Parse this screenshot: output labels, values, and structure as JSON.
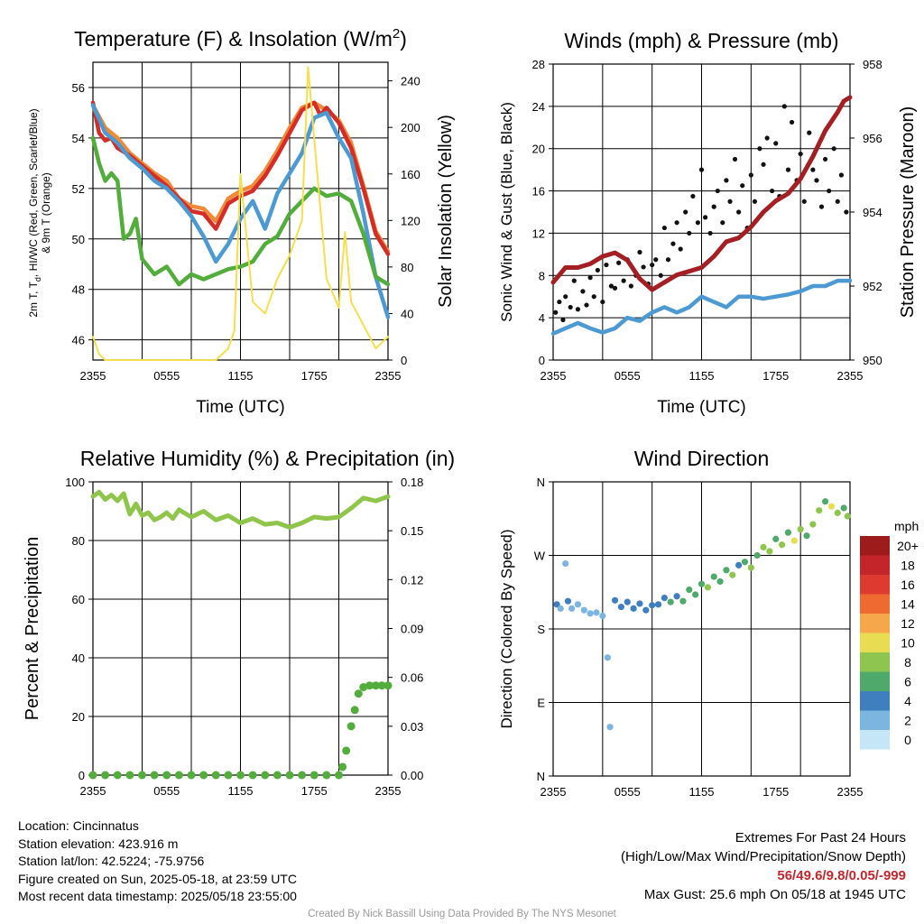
{
  "x_ticks": [
    "2355",
    "0555",
    "1155",
    "1755",
    "2355"
  ],
  "charts": [
    {
      "id": "temp",
      "type": "line",
      "title": "Temperature (F) & Insolation (W/m²)",
      "xlabel": "Time (UTC)",
      "ylabel_lines": [
        "2m T, T",
        "d",
        ", HI/WC (Red, Green, Scarlet/Blue)",
        "& 9m T (Orange)"
      ],
      "y2label": "Solar Insolation (Yellow)",
      "ylim": [
        45.2,
        57.0
      ],
      "y_ticks": [
        46,
        48,
        50,
        52,
        54,
        56
      ],
      "y2lim": [
        0,
        256
      ],
      "y2_ticks": [
        0,
        40,
        80,
        120,
        160,
        200,
        240
      ],
      "series": [
        {
          "color": "#f08a38",
          "axis": "y",
          "x": [
            0,
            1,
            2,
            3,
            4,
            5,
            6,
            7,
            8,
            9,
            10,
            11,
            12,
            13,
            14,
            15,
            16,
            17,
            18,
            19,
            20,
            21,
            22,
            23,
            24
          ],
          "y": [
            55.3,
            54.4,
            54.0,
            53.4,
            53.0,
            52.6,
            52.3,
            51.6,
            51.3,
            51.2,
            50.7,
            51.6,
            51.9,
            52.1,
            52.7,
            53.5,
            54.4,
            55.2,
            55.4,
            55.1,
            54.7,
            53.8,
            52.1,
            50.3,
            49.5
          ]
        },
        {
          "color": "#d42d27",
          "axis": "y",
          "x": [
            0,
            0.5,
            1,
            1.5,
            2,
            3,
            4,
            5,
            6,
            7,
            8,
            9,
            10,
            11,
            12,
            13,
            14,
            15,
            16,
            17,
            18,
            18.5,
            19,
            20,
            21,
            22,
            23,
            24
          ],
          "y": [
            55.4,
            54.2,
            53.9,
            54.0,
            53.6,
            53.3,
            52.9,
            52.5,
            52.1,
            51.6,
            51.1,
            51.0,
            50.4,
            51.4,
            51.7,
            51.9,
            52.5,
            53.3,
            54.2,
            55.1,
            55.4,
            54.9,
            55.2,
            54.6,
            53.6,
            52.0,
            50.2,
            49.4
          ]
        },
        {
          "color": "#4d9ad2",
          "axis": "y",
          "x": [
            0,
            1,
            2,
            3,
            4,
            5,
            6,
            7,
            8,
            9,
            10,
            11,
            12,
            13,
            14,
            15,
            16,
            17,
            18,
            19,
            20,
            21,
            22,
            23,
            24
          ],
          "y": [
            55.3,
            54.2,
            53.8,
            53.2,
            52.8,
            52.3,
            52.0,
            51.5,
            50.9,
            50.1,
            49.1,
            49.8,
            50.8,
            51.5,
            50.4,
            51.8,
            52.6,
            53.4,
            54.8,
            55.0,
            54.0,
            53.2,
            51.0,
            48.5,
            46.9
          ]
        },
        {
          "color": "#52ad3c",
          "axis": "y",
          "x": [
            0,
            0.5,
            1,
            1.5,
            2,
            2.5,
            3,
            3.5,
            4,
            5,
            6,
            7,
            8,
            9,
            10,
            11,
            12,
            13,
            14,
            15,
            16,
            17,
            18,
            19,
            20,
            21,
            22,
            23,
            24
          ],
          "y": [
            54.0,
            53.0,
            52.3,
            52.6,
            52.3,
            50.0,
            50.2,
            50.8,
            49.2,
            48.6,
            48.9,
            48.2,
            48.6,
            48.4,
            48.6,
            48.8,
            48.9,
            49.1,
            49.8,
            50.1,
            51.0,
            51.5,
            52.0,
            51.7,
            51.8,
            51.5,
            50.2,
            48.5,
            48.2
          ]
        },
        {
          "color": "#f5df4f",
          "axis": "y2",
          "x": [
            0,
            0.5,
            1,
            2,
            3,
            4,
            5,
            6,
            7,
            8,
            9,
            10,
            11,
            11.5,
            12,
            13,
            14,
            15,
            16,
            17,
            17.5,
            18,
            19,
            20,
            20.5,
            21,
            22,
            23,
            24
          ],
          "y": [
            20,
            5,
            0,
            0,
            0,
            0,
            0,
            0,
            0,
            0,
            0,
            0,
            10,
            25,
            160,
            50,
            40,
            70,
            90,
            120,
            252,
            190,
            70,
            45,
            110,
            50,
            30,
            10,
            20
          ]
        }
      ]
    },
    {
      "id": "wind",
      "type": "scatter",
      "title": "Winds (mph) & Pressure (mb)",
      "xlabel": "Time (UTC)",
      "ylabel": "Sonic Wind & Gust (Blue, Black)",
      "y2label": "Station Pressure (Maroon)",
      "ylim": [
        0,
        28
      ],
      "y_ticks": [
        0,
        4,
        8,
        12,
        16,
        20,
        24,
        28
      ],
      "y2lim": [
        950,
        958
      ],
      "y2_ticks": [
        950,
        952,
        954,
        956,
        958
      ],
      "series": [
        {
          "color": "#4d9ad2",
          "axis": "y",
          "x": [
            0,
            1,
            2,
            3,
            4,
            5,
            6,
            7,
            8,
            9,
            10,
            11,
            12,
            13,
            14,
            15,
            16,
            17,
            18,
            19,
            20,
            21,
            22,
            23,
            24
          ],
          "y": [
            2.5,
            3.0,
            3.5,
            3.0,
            2.6,
            3.0,
            4.0,
            3.7,
            4.5,
            5.0,
            4.5,
            5.0,
            6.0,
            5.5,
            5.0,
            6.0,
            6.0,
            5.8,
            6.0,
            6.2,
            6.5,
            7.0,
            7.0,
            7.5,
            7.5
          ]
        },
        {
          "color": "#111111",
          "axis": "y",
          "marker": "dot",
          "x": [
            0.2,
            0.5,
            0.8,
            1.0,
            1.4,
            1.7,
            2.0,
            2.4,
            2.7,
            3.0,
            3.3,
            3.6,
            4.0,
            4.3,
            4.7,
            5.0,
            5.3,
            5.7,
            6.0,
            6.3,
            6.7,
            7.0,
            7.3,
            7.7,
            8.0,
            8.3,
            8.7,
            9.0,
            9.3,
            9.7,
            10.0,
            10.3,
            10.7,
            11.0,
            11.3,
            11.7,
            12.0,
            12.3,
            12.7,
            13.0,
            13.3,
            13.7,
            14.0,
            14.3,
            14.7,
            15.0,
            15.3,
            15.7,
            16.0,
            16.3,
            16.7,
            17.0,
            17.3,
            17.7,
            18.0,
            18.3,
            18.7,
            19.0,
            19.3,
            19.7,
            20.0,
            20.3,
            20.7,
            21.0,
            21.3,
            21.7,
            22.0,
            22.3,
            22.7,
            23.0,
            23.3,
            23.7
          ],
          "y": [
            4.5,
            5.5,
            3.8,
            6.0,
            5.0,
            7.5,
            4.8,
            6.5,
            5.2,
            7.8,
            6.0,
            8.5,
            5.5,
            9.0,
            7.0,
            6.8,
            9.2,
            7.5,
            9.5,
            7.0,
            8.0,
            10.2,
            8.8,
            7.2,
            9.0,
            9.5,
            8.0,
            12.5,
            9.5,
            11.0,
            13.0,
            10.5,
            14.0,
            12.0,
            15.5,
            13.0,
            18.0,
            13.5,
            12.0,
            14.5,
            16.0,
            13.0,
            17.0,
            15.0,
            19.0,
            14.0,
            16.5,
            12.5,
            17.5,
            15.0,
            20.0,
            18.5,
            21.0,
            16.0,
            20.5,
            15.5,
            24.0,
            18.0,
            22.5,
            17.0,
            19.5,
            15.0,
            21.5,
            18.0,
            17.0,
            14.5,
            19.0,
            16.0,
            20.0,
            15.0,
            17.5,
            14.0
          ]
        },
        {
          "color": "#a31f24",
          "axis": "y2",
          "x": [
            0,
            0.5,
            1,
            2,
            3,
            4,
            5,
            6,
            7,
            8,
            9,
            10,
            11,
            12,
            13,
            14,
            15,
            16,
            17,
            18,
            19,
            20,
            21,
            22,
            23,
            23.5,
            24
          ],
          "y": [
            952.1,
            952.3,
            952.5,
            952.5,
            952.6,
            952.8,
            952.9,
            952.7,
            952.2,
            951.9,
            952.1,
            952.3,
            952.4,
            952.5,
            952.8,
            953.2,
            953.3,
            953.6,
            954.0,
            954.3,
            954.5,
            954.9,
            955.5,
            956.2,
            956.7,
            957.0,
            957.1
          ]
        }
      ]
    },
    {
      "id": "rh",
      "type": "line",
      "title": "Relative Humidity (%) & Precipitation (in)",
      "xlabel": "",
      "ylabel": "Percent & Precipitation",
      "ylim": [
        0,
        100
      ],
      "y_ticks": [
        0,
        20,
        40,
        60,
        80,
        100
      ],
      "y2lim": [
        0,
        0.18
      ],
      "y2_ticks": [
        "0.00",
        "0.03",
        "0.06",
        "0.09",
        "0.12",
        "0.15",
        "0.18"
      ],
      "series": [
        {
          "name": "RH",
          "color": "#8fc54b",
          "axis": "y",
          "x": [
            0,
            0.5,
            1,
            1.5,
            2,
            2.5,
            3,
            3.5,
            4,
            4.5,
            5,
            5.5,
            6,
            6.5,
            7,
            8,
            9,
            10,
            11,
            12,
            13,
            14,
            15,
            16,
            17,
            18,
            19,
            20,
            21,
            22,
            23,
            24
          ],
          "y": [
            95.0,
            96.5,
            94.0,
            95.5,
            93.5,
            96.0,
            89.0,
            92.5,
            88.5,
            89.5,
            87.0,
            88.0,
            89.5,
            87.5,
            90.5,
            88.0,
            90.0,
            87.0,
            88.5,
            86.0,
            87.5,
            85.5,
            86.0,
            84.5,
            86.0,
            88.0,
            87.5,
            88.0,
            91.0,
            94.5,
            93.5,
            95.0
          ]
        },
        {
          "name": "Precip",
          "color": "#52ad3c",
          "axis": "y2",
          "marker": "dot",
          "x": [
            0,
            1,
            2,
            3,
            4,
            5,
            6,
            7,
            8,
            9,
            10,
            11,
            12,
            13,
            14,
            15,
            16,
            17,
            18,
            19,
            20,
            20.3,
            20.6,
            21.0,
            21.3,
            21.6,
            22.0,
            22.5,
            23.0,
            23.5,
            24.0
          ],
          "y": [
            0,
            0,
            0,
            0,
            0,
            0,
            0,
            0,
            0,
            0,
            0,
            0,
            0,
            0,
            0,
            0,
            0,
            0,
            0,
            0,
            0.0,
            0.005,
            0.015,
            0.03,
            0.04,
            0.05,
            0.054,
            0.055,
            0.055,
            0.055,
            0.055
          ]
        }
      ]
    },
    {
      "id": "dir",
      "type": "scatter",
      "title": "Wind Direction",
      "xlabel": "",
      "ylabel": "Direction (Colored By Speed)",
      "y_ticks_text": [
        "N",
        "E",
        "S",
        "W",
        "N"
      ],
      "y_ticks": [
        0,
        90,
        180,
        270,
        360
      ],
      "ylim": [
        0,
        360
      ],
      "points": [
        [
          0.3,
          210,
          3
        ],
        [
          0.6,
          205,
          2
        ],
        [
          1.0,
          260,
          2
        ],
        [
          1.2,
          214,
          3
        ],
        [
          1.5,
          205,
          2
        ],
        [
          2.0,
          210,
          1
        ],
        [
          2.5,
          203,
          2
        ],
        [
          3.0,
          199,
          2
        ],
        [
          3.5,
          200,
          1
        ],
        [
          4.0,
          196,
          2
        ],
        [
          4.4,
          145,
          1
        ],
        [
          4.6,
          60,
          1
        ],
        [
          5.0,
          215,
          3
        ],
        [
          5.5,
          207,
          4
        ],
        [
          6.0,
          213,
          4
        ],
        [
          6.5,
          205,
          3
        ],
        [
          7.0,
          211,
          4
        ],
        [
          7.5,
          203,
          3
        ],
        [
          8.0,
          209,
          4
        ],
        [
          8.5,
          210,
          3
        ],
        [
          9.0,
          218,
          4
        ],
        [
          9.5,
          213,
          5
        ],
        [
          10.0,
          220,
          4
        ],
        [
          10.5,
          214,
          6
        ],
        [
          11.0,
          228,
          5
        ],
        [
          11.5,
          222,
          6
        ],
        [
          12.0,
          235,
          5
        ],
        [
          12.5,
          231,
          7
        ],
        [
          13.0,
          244,
          6
        ],
        [
          13.5,
          238,
          5
        ],
        [
          14.0,
          252,
          6
        ],
        [
          14.5,
          246,
          7
        ],
        [
          15.0,
          258,
          4
        ],
        [
          15.5,
          262,
          6
        ],
        [
          16.0,
          255,
          7
        ],
        [
          16.5,
          270,
          6
        ],
        [
          17.0,
          280,
          7
        ],
        [
          17.5,
          275,
          8
        ],
        [
          18.0,
          290,
          6
        ],
        [
          18.5,
          283,
          7
        ],
        [
          19.0,
          298,
          6
        ],
        [
          19.5,
          288,
          9
        ],
        [
          20.0,
          302,
          7
        ],
        [
          20.5,
          294,
          6
        ],
        [
          21.0,
          308,
          8
        ],
        [
          21.5,
          325,
          7
        ],
        [
          22.0,
          336,
          6
        ],
        [
          22.5,
          330,
          9
        ],
        [
          23.0,
          322,
          7
        ],
        [
          23.5,
          328,
          6
        ],
        [
          23.8,
          318,
          7
        ]
      ]
    }
  ],
  "colorbar": {
    "unit": "mph",
    "labels": [
      "20+",
      "18",
      "16",
      "14",
      "12",
      "10",
      "8",
      "6",
      "4",
      "2",
      "0"
    ],
    "colors": [
      "#9e1b1b",
      "#c4252a",
      "#df3a2f",
      "#ee6a30",
      "#f6a64b",
      "#e8dc53",
      "#8ec54f",
      "#4ea96a",
      "#3f7fbf",
      "#7bb5e0",
      "#c5e6f7"
    ]
  },
  "footer": {
    "location": "Location: Cincinnatus",
    "elevation": "Station elevation: 423.916 m",
    "latlon": "Station lat/lon: 42.5224; -75.9756",
    "created": "Figure created on Sun, 2025-05-18, at 23:59 UTC",
    "recent": "Most recent data timestamp: 2025/05/18 23:55:00",
    "extremes_title": "Extremes For Past 24 Hours",
    "extremes_desc": "(High/Low/Max Wind/Precipitation/Snow Depth)",
    "extremes_values": "56/49.6/9.8/0.05/-999",
    "max_gust": "Max Gust: 25.6 mph On 05/18 at 1945 UTC",
    "credit": "Created By Nick Bassill Using Data Provided By The NYS Mesonet"
  }
}
